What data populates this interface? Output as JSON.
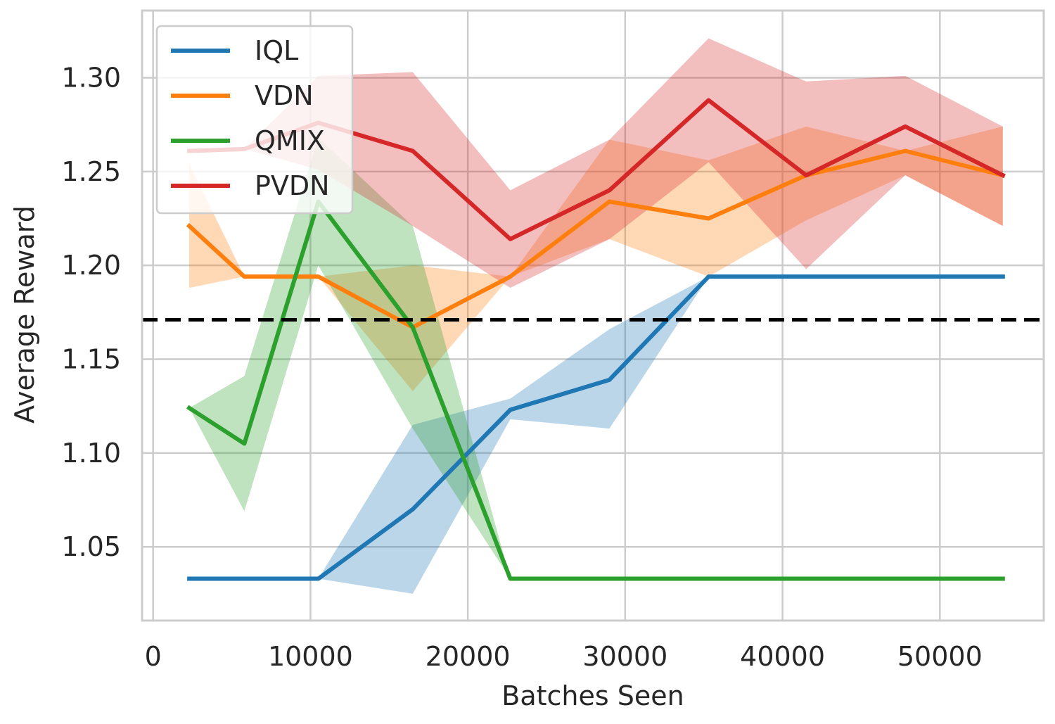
{
  "chart_data": {
    "type": "line",
    "title": "",
    "xlabel": "Batches Seen",
    "ylabel": "Average Reward",
    "xlim": [
      -700,
      56600
    ],
    "ylim": [
      1.0107,
      1.3358
    ],
    "xticks": [
      0,
      10000,
      20000,
      30000,
      40000,
      50000
    ],
    "yticks": [
      1.05,
      1.1,
      1.15,
      1.2,
      1.25,
      1.3
    ],
    "xtick_labels": [
      "0",
      "10000",
      "20000",
      "30000",
      "40000",
      "50000"
    ],
    "ytick_labels": [
      "1.05",
      "1.10",
      "1.15",
      "1.20",
      "1.25",
      "1.30"
    ],
    "grid": true,
    "legend_position": "top-left",
    "reference_line": {
      "y": 1.171,
      "style": "dashed",
      "color": "#000000"
    },
    "x": [
      2300,
      5800,
      10500,
      16500,
      22700,
      29000,
      35300,
      41500,
      47800,
      54000
    ],
    "series": [
      {
        "name": "IQL",
        "color": "#1f77b4",
        "values": [
          1.033,
          1.033,
          1.033,
          1.07,
          1.123,
          1.139,
          1.194,
          1.194,
          1.194,
          1.194
        ],
        "lower": [
          1.033,
          1.033,
          1.033,
          1.025,
          1.118,
          1.113,
          1.194,
          1.194,
          1.194,
          1.194
        ],
        "upper": [
          1.033,
          1.033,
          1.033,
          1.115,
          1.129,
          1.166,
          1.194,
          1.194,
          1.194,
          1.194
        ]
      },
      {
        "name": "VDN",
        "color": "#ff7f0e",
        "values": [
          1.221,
          1.194,
          1.194,
          1.167,
          1.194,
          1.234,
          1.225,
          1.248,
          1.261,
          1.248
        ],
        "lower": [
          1.188,
          1.194,
          1.194,
          1.133,
          1.194,
          1.214,
          1.194,
          1.224,
          1.248,
          1.221
        ],
        "upper": [
          1.254,
          1.194,
          1.194,
          1.2,
          1.194,
          1.267,
          1.256,
          1.274,
          1.261,
          1.274
        ]
      },
      {
        "name": "QMIX",
        "color": "#2ca02c",
        "values": [
          1.124,
          1.105,
          1.234,
          1.167,
          1.033,
          1.033,
          1.033,
          1.033,
          1.033,
          1.033
        ],
        "lower": [
          1.124,
          1.069,
          1.2,
          1.113,
          1.033,
          1.033,
          1.033,
          1.033,
          1.033,
          1.033
        ],
        "upper": [
          1.124,
          1.141,
          1.268,
          1.221,
          1.033,
          1.033,
          1.033,
          1.033,
          1.033,
          1.033
        ]
      },
      {
        "name": "PVDN",
        "color": "#d62728",
        "values": [
          1.261,
          1.262,
          1.276,
          1.261,
          1.214,
          1.24,
          1.288,
          1.248,
          1.274,
          1.248
        ],
        "lower": [
          1.261,
          1.262,
          1.251,
          1.221,
          1.188,
          1.214,
          1.255,
          1.198,
          1.248,
          1.221
        ],
        "upper": [
          1.261,
          1.262,
          1.301,
          1.303,
          1.24,
          1.267,
          1.321,
          1.298,
          1.301,
          1.274
        ]
      }
    ]
  }
}
